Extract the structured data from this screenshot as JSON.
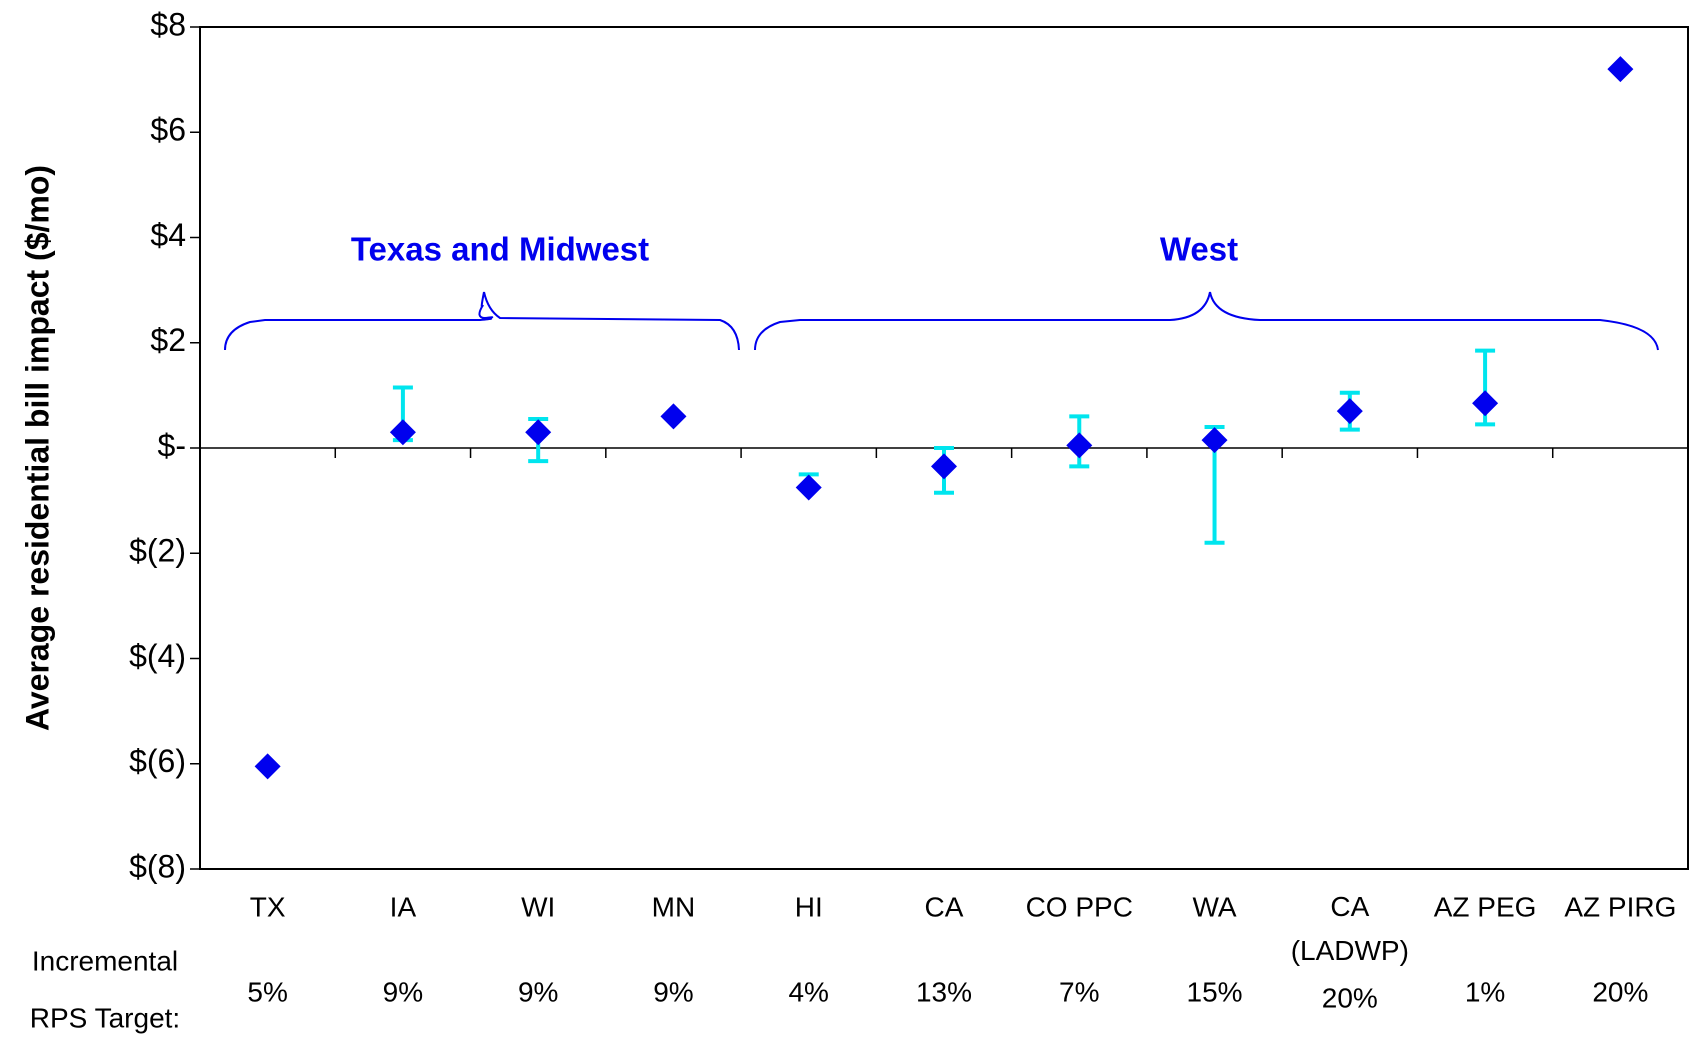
{
  "chart_data": {
    "type": "scatter",
    "y_axis_label": "Average residential bill impact ($/mo)",
    "categories": [
      "TX",
      "IA",
      "WI",
      "MN",
      "HI",
      "CA",
      "CO PPC",
      "WA",
      "CA (LADWP)",
      "AZ PEG",
      "AZ PIRG"
    ],
    "series": [
      {
        "color": "#0000ee",
        "values": [
          -6.05,
          0.3,
          0.3,
          0.6,
          -0.75,
          -0.35,
          0.05,
          0.15,
          0.7,
          0.85,
          7.2
        ],
        "error_low": [
          null,
          0.15,
          -0.25,
          null,
          -0.75,
          -0.85,
          -0.35,
          -1.8,
          0.35,
          0.45,
          null
        ],
        "error_high": [
          null,
          1.15,
          0.55,
          null,
          -0.5,
          0.0,
          0.6,
          0.4,
          1.05,
          1.85,
          null
        ],
        "error_color": "#00e5ee"
      }
    ],
    "ylim": [
      -8,
      8
    ],
    "yticks": [
      {
        "value": 8,
        "label": "$8"
      },
      {
        "value": 6,
        "label": "$6"
      },
      {
        "value": 4,
        "label": "$4"
      },
      {
        "value": 2,
        "label": "$2"
      },
      {
        "value": 0,
        "label": "$-"
      },
      {
        "value": -2,
        "label": "$(2)"
      },
      {
        "value": -4,
        "label": "$(4)"
      },
      {
        "value": -6,
        "label": "$(6)"
      },
      {
        "value": -8,
        "label": "$(8)"
      }
    ],
    "row_label": [
      "Incremental",
      "RPS Target:"
    ],
    "rps_targets": [
      "5%",
      "9%",
      "9%",
      "9%",
      "4%",
      "13%",
      "7%",
      "15%",
      "20%",
      "1%",
      "20%"
    ],
    "annotations": [
      "Texas and Midwest",
      "West"
    ]
  }
}
